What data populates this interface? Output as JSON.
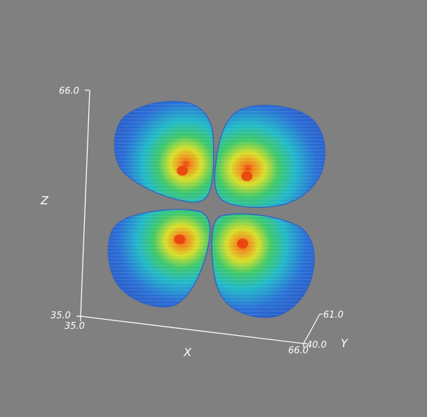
{
  "scene": {
    "background_color": "#808080",
    "colormap": [
      "#2a6fd6",
      "#22b8c8",
      "#3ec86a",
      "#d8de2a",
      "#f08a1a",
      "#e8420e"
    ],
    "lobes": 4,
    "description_free": true
  },
  "axes": {
    "x": {
      "label": "X",
      "min": "35.0",
      "max": "66.0"
    },
    "y": {
      "label": "Y",
      "min": "40.0",
      "max": "61.0"
    },
    "z": {
      "label": "Z",
      "min": "35.0",
      "max": "66.0"
    }
  }
}
